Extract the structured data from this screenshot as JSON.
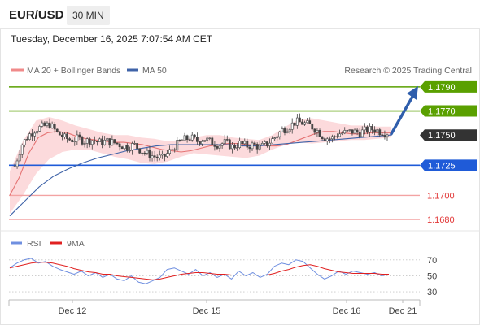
{
  "header": {
    "symbol": "EUR/USD",
    "timeframe": "30 MIN",
    "datetime": "Tuesday, December 16, 2025 7:07:54 AM CET"
  },
  "legend": {
    "ma20_label": "MA 20 + Bollinger Bands",
    "ma50_label": "MA 50",
    "source": "Research © 2025 Trading Central",
    "rsi_label": "RSI",
    "ma9_label": "9MA"
  },
  "colors": {
    "green_level": "#5aa000",
    "blue_level": "#1f5bd8",
    "red_level": "#f3a3a3",
    "band_fill": "#fbd3d6",
    "ma20": "#e57373",
    "ma50": "#3f63a8",
    "arrow": "#2f5eac",
    "rsi": "#6f8fe0",
    "rsi_ma": "#e02020",
    "candle": "#444444",
    "current_tag": "#333333"
  },
  "chart_data": [
    {
      "type": "candlestick",
      "y_range": [
        1.1672,
        1.1798
      ],
      "x_ticks": [
        "Dec 12",
        "Dec 15",
        "Dec 16",
        "Dec 21"
      ],
      "current_price": "1.1750",
      "levels": [
        {
          "value": 1.179,
          "label": "1.1790",
          "kind": "resistance"
        },
        {
          "value": 1.177,
          "label": "1.1770",
          "kind": "resistance"
        },
        {
          "value": 1.1725,
          "label": "1.1725",
          "kind": "pivot"
        },
        {
          "value": 1.17,
          "label": "1.1700",
          "kind": "support"
        },
        {
          "value": 1.168,
          "label": "1.1680",
          "kind": "support"
        }
      ],
      "close_series": [
        1.1724,
        1.1742,
        1.175,
        1.1755,
        1.1757,
        1.1759,
        1.1752,
        1.1748,
        1.1746,
        1.1747,
        1.1745,
        1.1746,
        1.1744,
        1.1745,
        1.1744,
        1.1742,
        1.174,
        1.1742,
        1.1737,
        1.1734,
        1.1732,
        1.1731,
        1.1736,
        1.1742,
        1.1746,
        1.1748,
        1.1745,
        1.1747,
        1.1744,
        1.1742,
        1.1744,
        1.174,
        1.1743,
        1.1741,
        1.1742,
        1.174,
        1.1743,
        1.1748,
        1.1754,
        1.1757,
        1.1761,
        1.176,
        1.1758,
        1.1754,
        1.1748,
        1.1747,
        1.1751,
        1.1752,
        1.1753,
        1.1752,
        1.1754,
        1.1755,
        1.1753,
        1.1752
      ],
      "ma20_series": [
        1.17,
        1.1715,
        1.1735,
        1.1748,
        1.1752,
        1.1753,
        1.1752,
        1.1749,
        1.1747,
        1.1746,
        1.1745,
        1.1744,
        1.1744,
        1.1743,
        1.1742,
        1.174,
        1.1738,
        1.1737,
        1.1736,
        1.1737,
        1.1739,
        1.1741,
        1.1742,
        1.1743,
        1.1743,
        1.1742,
        1.1742,
        1.1741,
        1.1741,
        1.1742,
        1.1745,
        1.1748,
        1.1751,
        1.1753,
        1.1753,
        1.1752,
        1.1751,
        1.1751,
        1.1752,
        1.1752,
        1.1752
      ],
      "ma50_series": [
        1.1683,
        1.1695,
        1.1707,
        1.1716,
        1.1722,
        1.1727,
        1.1731,
        1.1734,
        1.1737,
        1.1739,
        1.1741,
        1.1742,
        1.1742,
        1.1742,
        1.1742,
        1.1742,
        1.1741,
        1.1741,
        1.1742,
        1.1743,
        1.1744,
        1.1745,
        1.1746,
        1.1747,
        1.1748,
        1.1749,
        1.175
      ],
      "band_upper": [
        1.172,
        1.1745,
        1.1762,
        1.1765,
        1.1762,
        1.1758,
        1.1755,
        1.1752,
        1.175,
        1.175,
        1.1748,
        1.1747,
        1.1745,
        1.1746,
        1.1748,
        1.175,
        1.175,
        1.1748,
        1.1747,
        1.1746,
        1.175,
        1.1757,
        1.1763,
        1.1764,
        1.1762,
        1.176,
        1.1758,
        1.1758,
        1.1757,
        1.1757
      ],
      "band_lower": [
        1.1685,
        1.17,
        1.1718,
        1.173,
        1.1736,
        1.1738,
        1.1738,
        1.1735,
        1.1732,
        1.173,
        1.1727,
        1.1726,
        1.1728,
        1.1732,
        1.1735,
        1.1734,
        1.1733,
        1.1732,
        1.1731,
        1.1733,
        1.1738,
        1.1742,
        1.1744,
        1.1743,
        1.1744,
        1.1745,
        1.1746,
        1.1746,
        1.1747,
        1.1748
      ],
      "forecast_arrow": {
        "from": 1.1751,
        "to": 1.179
      }
    },
    {
      "type": "line",
      "y_ticks": [
        70,
        50,
        30
      ],
      "y_range": [
        25,
        78
      ],
      "series": [
        {
          "name": "RSI",
          "values": [
            60,
            66,
            70,
            72,
            66,
            68,
            62,
            58,
            55,
            52,
            56,
            50,
            54,
            48,
            52,
            46,
            44,
            50,
            42,
            40,
            44,
            48,
            58,
            60,
            56,
            52,
            58,
            50,
            54,
            48,
            52,
            46,
            56,
            50,
            54,
            48,
            52,
            62,
            66,
            64,
            70,
            68,
            60,
            52,
            46,
            50,
            56,
            52,
            56,
            54,
            52,
            54,
            50,
            52
          ]
        },
        {
          "name": "9MA",
          "values": [
            60,
            62,
            64,
            66,
            67,
            67,
            66,
            64,
            62,
            59,
            57,
            55,
            54,
            52,
            52,
            50,
            49,
            48,
            47,
            46,
            45,
            46,
            48,
            50,
            52,
            53,
            54,
            54,
            53,
            52,
            52,
            51,
            51,
            51,
            51,
            51,
            51,
            53,
            56,
            58,
            61,
            63,
            64,
            62,
            59,
            57,
            55,
            54,
            53,
            53,
            53,
            53,
            52,
            52
          ]
        }
      ]
    }
  ]
}
